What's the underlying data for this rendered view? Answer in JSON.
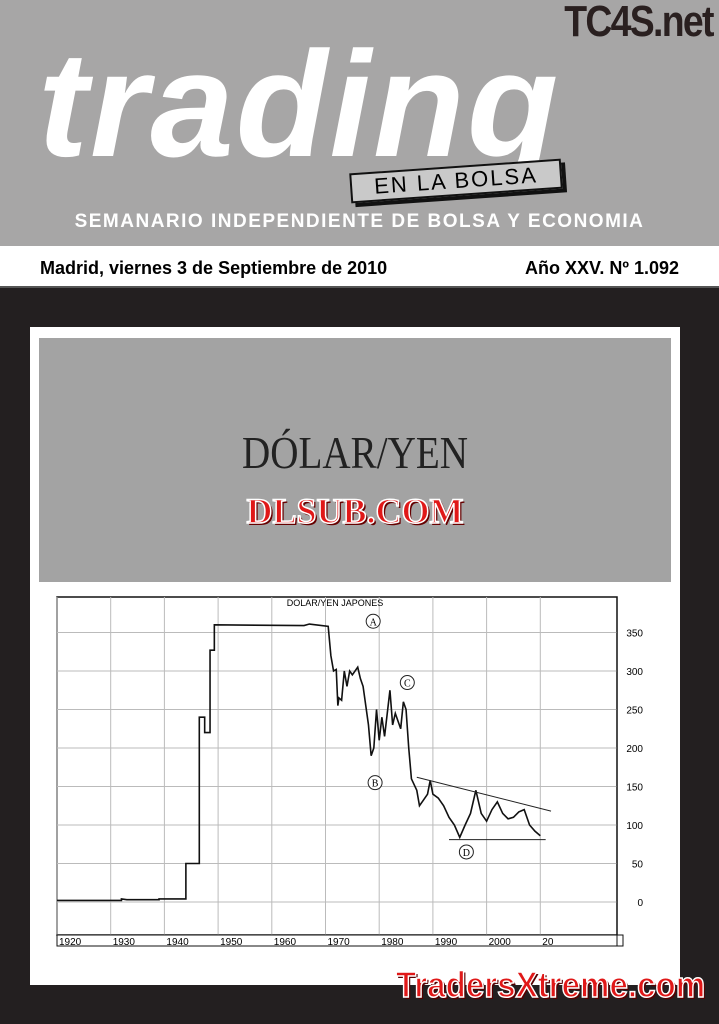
{
  "masthead": {
    "watermark": "TC4S.net",
    "title": "trading",
    "subtitle_box": "EN LA BOLSA",
    "tagline": "SEMANARIO INDEPENDIENTE DE BOLSA Y ECONOMIA"
  },
  "dateline": {
    "date": "Madrid, viernes 3 de Septiembre de 2010",
    "issue": "Año XXV. Nº 1.092"
  },
  "cover": {
    "headline": "DÓLAR/YEN",
    "watermark": "DLSUB.COM"
  },
  "footer_watermark": "TradersXtreme.com",
  "chart_data": {
    "type": "line",
    "title": "DOLAR/YEN JAPONES",
    "xlim": [
      1920,
      2012
    ],
    "ylim": [
      -45,
      390
    ],
    "x_ticks": [
      "1920",
      "1930",
      "1940",
      "1950",
      "1960",
      "1970",
      "1980",
      "1990",
      "2000",
      "20"
    ],
    "y_ticks": [
      0,
      50,
      100,
      150,
      200,
      250,
      300,
      350
    ],
    "grid": true,
    "y_axis_side": "right",
    "series": [
      {
        "points": [
          [
            1920,
            2
          ],
          [
            1932,
            2
          ],
          [
            1932,
            4
          ],
          [
            1933,
            3
          ],
          [
            1939,
            3
          ],
          [
            1939,
            4
          ],
          [
            1944,
            4
          ],
          [
            1944,
            50
          ],
          [
            1946.5,
            50
          ],
          [
            1946.5,
            240
          ],
          [
            1947.5,
            240
          ],
          [
            1947.5,
            220
          ],
          [
            1948.5,
            220
          ],
          [
            1948.5,
            327
          ],
          [
            1949.3,
            327
          ],
          [
            1949.3,
            360
          ],
          [
            1966,
            359
          ],
          [
            1967,
            361
          ],
          [
            1970.5,
            358
          ],
          [
            1971,
            320
          ],
          [
            1971.5,
            300
          ],
          [
            1972,
            302
          ],
          [
            1972.3,
            255
          ],
          [
            1972.5,
            265
          ],
          [
            1973,
            262
          ],
          [
            1973.5,
            300
          ],
          [
            1974,
            280
          ],
          [
            1974.5,
            300
          ],
          [
            1975,
            295
          ],
          [
            1976,
            305
          ],
          [
            1976.5,
            290
          ],
          [
            1977,
            280
          ],
          [
            1978,
            230
          ],
          [
            1978.5,
            190
          ],
          [
            1979,
            200
          ],
          [
            1979.5,
            250
          ],
          [
            1980,
            210
          ],
          [
            1980.5,
            240
          ],
          [
            1981,
            215
          ],
          [
            1982,
            275
          ],
          [
            1982.5,
            230
          ],
          [
            1983,
            245
          ],
          [
            1984,
            225
          ],
          [
            1984.5,
            260
          ],
          [
            1985,
            250
          ],
          [
            1985.5,
            200
          ],
          [
            1986,
            160
          ],
          [
            1987,
            145
          ],
          [
            1987.5,
            125
          ],
          [
            1988,
            130
          ],
          [
            1989,
            140
          ],
          [
            1989.5,
            158
          ],
          [
            1990,
            140
          ],
          [
            1991,
            135
          ],
          [
            1992,
            125
          ],
          [
            1993,
            110
          ],
          [
            1994,
            100
          ],
          [
            1995,
            84
          ],
          [
            1996,
            100
          ],
          [
            1997,
            115
          ],
          [
            1998,
            145
          ],
          [
            1999,
            115
          ],
          [
            2000,
            105
          ],
          [
            2001,
            120
          ],
          [
            2002,
            130
          ],
          [
            2003,
            115
          ],
          [
            2004,
            108
          ],
          [
            2005,
            110
          ],
          [
            2006,
            117
          ],
          [
            2007,
            120
          ],
          [
            2008,
            100
          ],
          [
            2009,
            92
          ],
          [
            2010,
            86
          ]
        ]
      }
    ],
    "trendlines": [
      {
        "from": [
          1987,
          162
        ],
        "to": [
          2012,
          118
        ]
      },
      {
        "from": [
          1993,
          81
        ],
        "to": [
          2011,
          81
        ]
      }
    ],
    "annotations": [
      {
        "text": "A",
        "x": 1970.5,
        "y": 375
      },
      {
        "text": "B",
        "x": 1977,
        "y": 155
      },
      {
        "text": "C",
        "x": 1983,
        "y": 285
      },
      {
        "text": "D",
        "x": 1994,
        "y": 65
      }
    ]
  }
}
